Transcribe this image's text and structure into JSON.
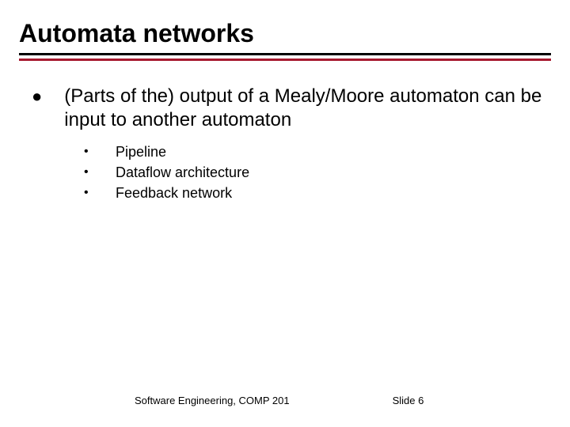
{
  "title": "Automata networks",
  "accent_color": "#a6192e",
  "main_bullet": "(Parts of the) output of a Mealy/Moore automaton can be input to another automaton",
  "sub_items": [
    "Pipeline",
    "Dataflow architecture",
    "Feedback network"
  ],
  "footer": {
    "course": "Software Engineering, COMP 201",
    "slide": "Slide  6"
  }
}
